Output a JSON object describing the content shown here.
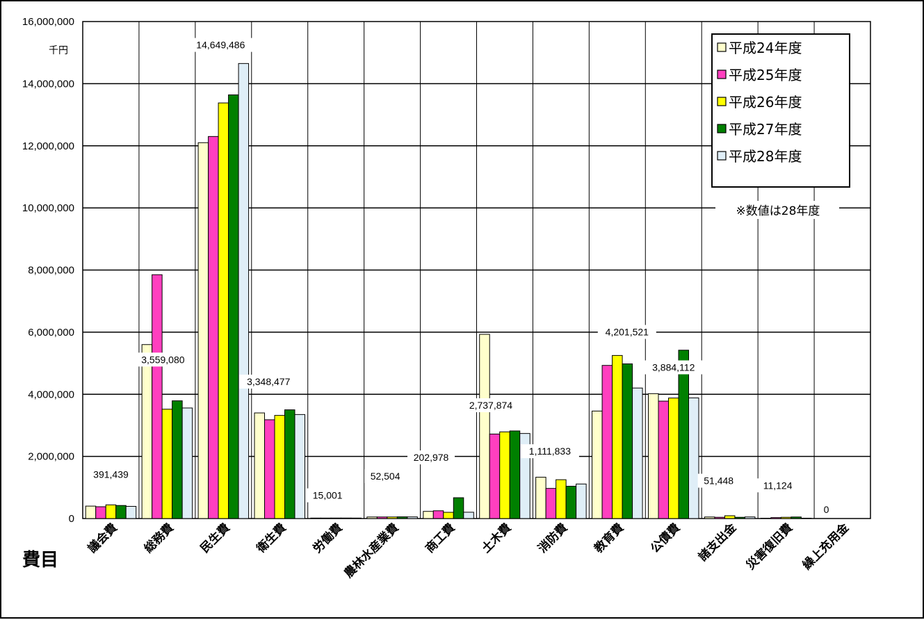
{
  "chart_data": {
    "type": "bar",
    "unit_label": "千円",
    "xlabel": "費目",
    "note": "※数値は28年度",
    "ylim": [
      0,
      16000000
    ],
    "yticks": [
      0,
      2000000,
      4000000,
      6000000,
      8000000,
      10000000,
      12000000,
      14000000,
      16000000
    ],
    "ytick_labels": [
      "0",
      "2,000,000",
      "4,000,000",
      "6,000,000",
      "8,000,000",
      "10,000,000",
      "12,000,000",
      "14,000,000",
      "16,000,000"
    ],
    "grid": true,
    "legend_position": "top-right",
    "categories": [
      "議会費",
      "総務費",
      "民生費",
      "衛生費",
      "労働費",
      "農林水産業費",
      "商工費",
      "土木費",
      "消防費",
      "教育費",
      "公債費",
      "諸支出金",
      "災害復旧費",
      "繰上充用金"
    ],
    "series": [
      {
        "name": "平成24年度",
        "color": "#ffffcc",
        "values": [
          400000,
          5600000,
          12100000,
          3400000,
          15000,
          50000,
          230000,
          5930000,
          1330000,
          3460000,
          4020000,
          50000,
          10000,
          0
        ]
      },
      {
        "name": "平成25年度",
        "color": "#ff3fbf",
        "values": [
          380000,
          7850000,
          12300000,
          3180000,
          15000,
          50000,
          250000,
          2720000,
          970000,
          4930000,
          3780000,
          40000,
          30000,
          0
        ]
      },
      {
        "name": "平成26年度",
        "color": "#ffff00",
        "values": [
          440000,
          3520000,
          13380000,
          3320000,
          16000,
          50000,
          200000,
          2790000,
          1250000,
          5250000,
          3880000,
          90000,
          40000,
          0
        ]
      },
      {
        "name": "平成27年度",
        "color": "#008000",
        "values": [
          420000,
          3790000,
          13640000,
          3500000,
          16000,
          55000,
          670000,
          2820000,
          1040000,
          4980000,
          5420000,
          40000,
          50000,
          0
        ]
      },
      {
        "name": "平成28年度",
        "color": "#dfeef7",
        "values": [
          391439,
          3559080,
          14649486,
          3348477,
          15001,
          52504,
          202978,
          2737874,
          1111833,
          4201521,
          3884112,
          51448,
          11124,
          0
        ]
      }
    ],
    "data_labels": [
      "391,439",
      "3,559,080",
      "14,649,486",
      "3,348,477",
      "15,001",
      "52,504",
      "202,978",
      "2,737,874",
      "1,111,833",
      "4,201,521",
      "3,884,112",
      "51,448",
      "11,124",
      "0"
    ]
  }
}
